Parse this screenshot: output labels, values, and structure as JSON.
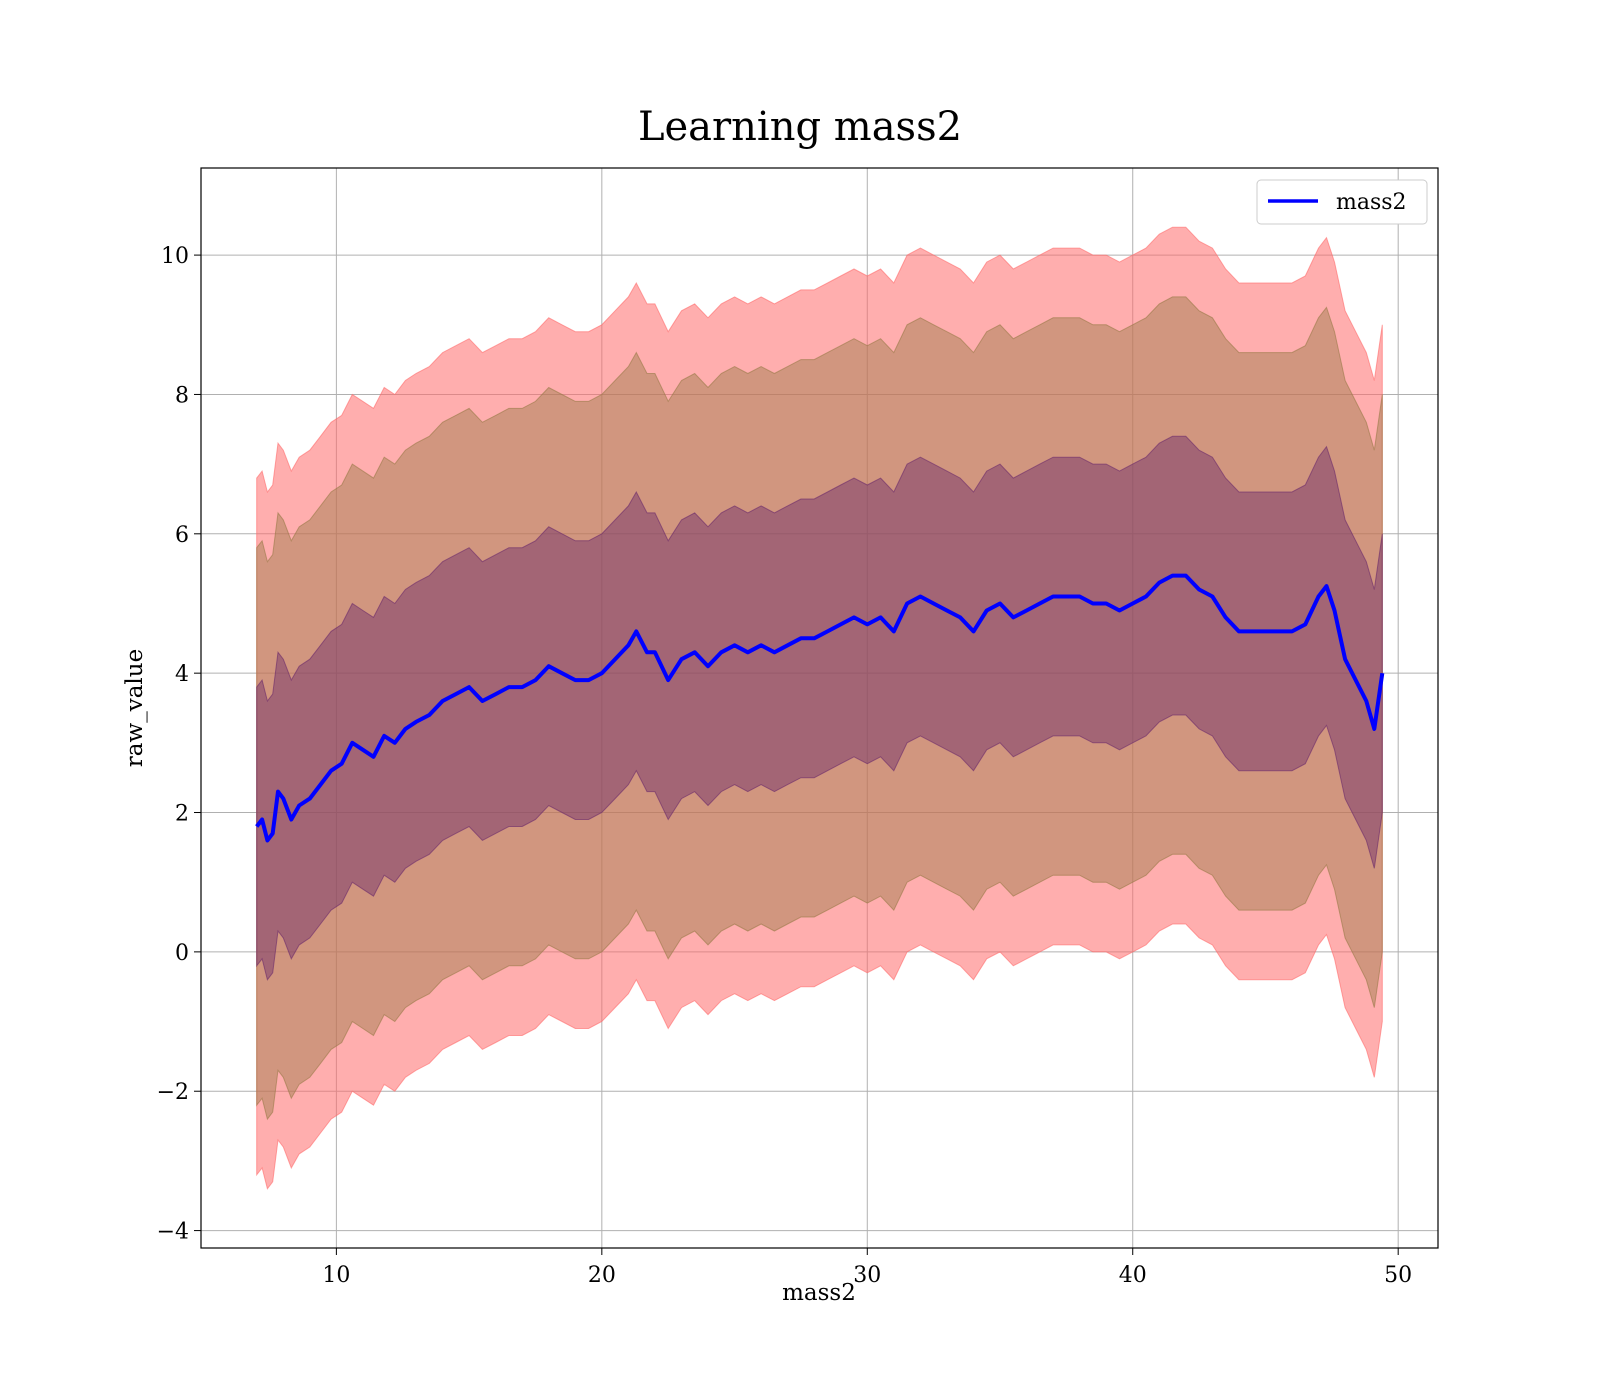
{
  "chart_data": {
    "type": "line",
    "title": "Learning mass2",
    "xlabel": "mass2",
    "ylabel": "raw_value",
    "xlim": [
      4.9,
      51.5
    ],
    "ylim": [
      -4.25,
      11.25
    ],
    "grid": true,
    "legend_position": "upper-right",
    "x_ticks": [
      {
        "value": 10,
        "label": "10"
      },
      {
        "value": 20,
        "label": "20"
      },
      {
        "value": 30,
        "label": "30"
      },
      {
        "value": 40,
        "label": "40"
      },
      {
        "value": 50,
        "label": "50"
      }
    ],
    "y_ticks": [
      {
        "value": -4,
        "label": "−4"
      },
      {
        "value": -2,
        "label": "−2"
      },
      {
        "value": 0,
        "label": "0"
      },
      {
        "value": 2,
        "label": "2"
      },
      {
        "value": 4,
        "label": "4"
      },
      {
        "value": 6,
        "label": "6"
      },
      {
        "value": 8,
        "label": "8"
      },
      {
        "value": 10,
        "label": "10"
      }
    ],
    "series": [
      {
        "name": "mass2",
        "color": "#0000ff",
        "x": [
          7.0,
          7.2,
          7.4,
          7.6,
          7.8,
          8.0,
          8.3,
          8.6,
          9.0,
          9.4,
          9.8,
          10.2,
          10.6,
          11.0,
          11.4,
          11.8,
          12.2,
          12.6,
          13.0,
          13.5,
          14.0,
          14.5,
          15.0,
          15.5,
          16.0,
          16.5,
          17.0,
          17.5,
          18.0,
          18.5,
          19.0,
          19.5,
          20.0,
          20.5,
          21.0,
          21.3,
          21.7,
          22.0,
          22.5,
          23.0,
          23.5,
          24.0,
          24.5,
          25.0,
          25.5,
          26.0,
          26.5,
          27.0,
          27.5,
          28.0,
          28.5,
          29.0,
          29.5,
          30.0,
          30.5,
          31.0,
          31.5,
          32.0,
          32.5,
          33.0,
          33.5,
          34.0,
          34.5,
          35.0,
          35.5,
          36.0,
          36.5,
          37.0,
          37.5,
          38.0,
          38.5,
          39.0,
          39.5,
          40.0,
          40.5,
          41.0,
          41.5,
          42.0,
          42.5,
          43.0,
          43.5,
          44.0,
          44.5,
          45.0,
          45.5,
          46.0,
          46.5,
          47.0,
          47.3,
          47.6,
          48.0,
          48.4,
          48.8,
          49.1,
          49.4
        ],
        "values": [
          1.8,
          1.9,
          1.6,
          1.7,
          2.3,
          2.2,
          1.9,
          2.1,
          2.2,
          2.4,
          2.6,
          2.7,
          3.0,
          2.9,
          2.8,
          3.1,
          3.0,
          3.2,
          3.3,
          3.4,
          3.6,
          3.7,
          3.8,
          3.6,
          3.7,
          3.8,
          3.8,
          3.9,
          4.1,
          4.0,
          3.9,
          3.9,
          4.0,
          4.2,
          4.4,
          4.6,
          4.3,
          4.3,
          3.9,
          4.2,
          4.3,
          4.1,
          4.3,
          4.4,
          4.3,
          4.4,
          4.3,
          4.4,
          4.5,
          4.5,
          4.6,
          4.7,
          4.8,
          4.7,
          4.8,
          4.6,
          5.0,
          5.1,
          5.0,
          4.9,
          4.8,
          4.6,
          4.9,
          5.0,
          4.8,
          4.9,
          5.0,
          5.1,
          5.1,
          5.1,
          5.0,
          5.0,
          4.9,
          5.0,
          5.1,
          5.3,
          5.4,
          5.4,
          5.2,
          5.1,
          4.8,
          4.6,
          4.6,
          4.6,
          4.6,
          4.6,
          4.7,
          5.1,
          5.25,
          4.9,
          4.2,
          3.9,
          3.6,
          3.2,
          4.0
        ]
      }
    ],
    "bands": [
      {
        "offset": 5,
        "fill": "#ff6b6b",
        "opacity": 0.55
      },
      {
        "offset": 4,
        "fill": "#9a7a48",
        "opacity": 0.45
      },
      {
        "offset": 2,
        "fill": "#6a2a6a",
        "opacity": 0.45
      }
    ]
  }
}
